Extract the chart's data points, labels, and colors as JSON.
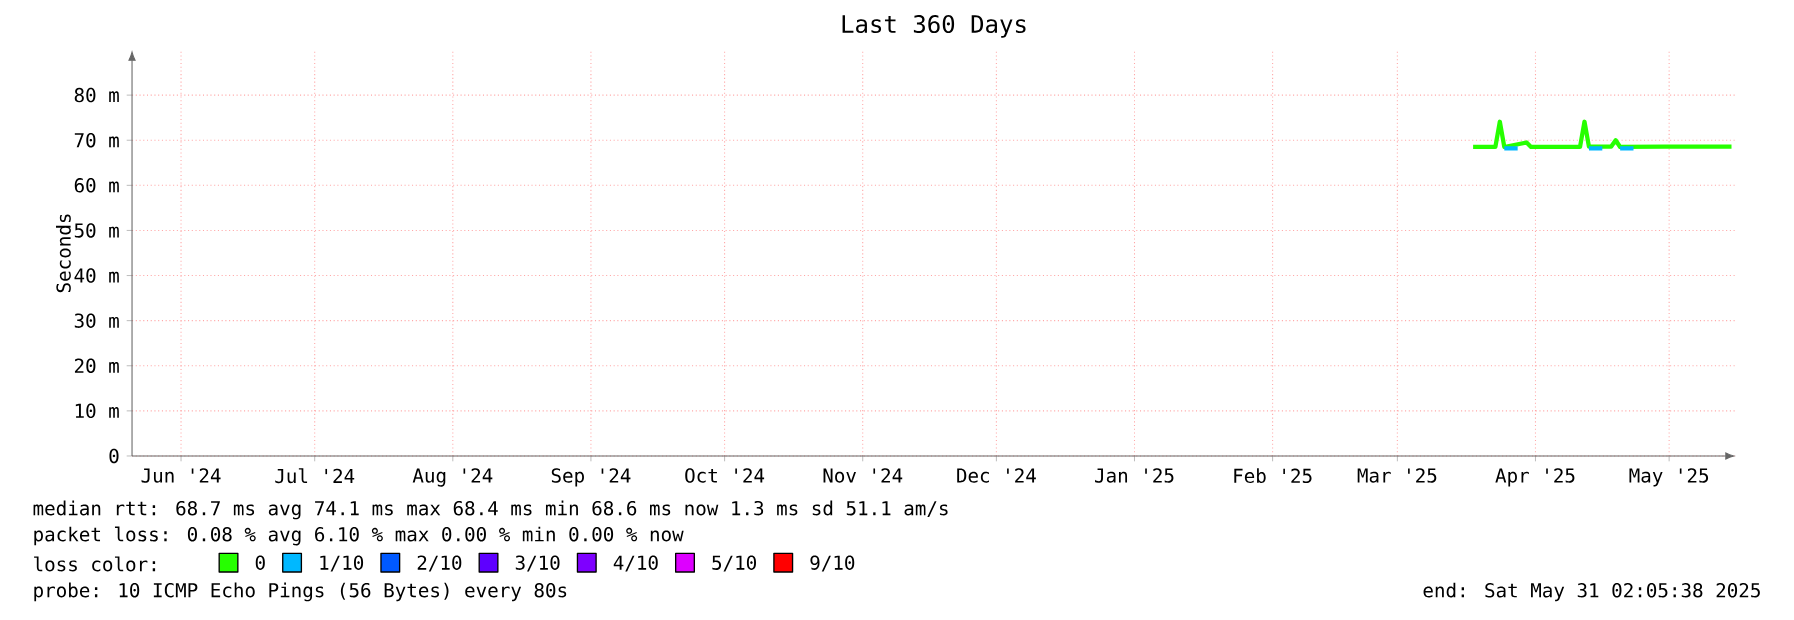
{
  "chart_data": {
    "type": "line",
    "title": "Last 360 Days",
    "ylabel": "Seconds",
    "legend_title": "loss color:",
    "xlim": [
      "2024-06-05",
      "2025-05-31"
    ],
    "xticks": [
      {
        "value": "2024-06-16",
        "label": "Jun '24"
      },
      {
        "value": "2024-07-16",
        "label": "Jul '24"
      },
      {
        "value": "2024-08-16",
        "label": "Aug '24"
      },
      {
        "value": "2024-09-16",
        "label": "Sep '24"
      },
      {
        "value": "2024-10-16",
        "label": "Oct '24"
      },
      {
        "value": "2024-11-16",
        "label": "Nov '24"
      },
      {
        "value": "2024-12-16",
        "label": "Dec '24"
      },
      {
        "value": "2025-01-16",
        "label": "Jan '25"
      },
      {
        "value": "2025-02-16",
        "label": "Feb '25"
      },
      {
        "value": "2025-03-16",
        "label": "Mar '25"
      },
      {
        "value": "2025-04-16",
        "label": "Apr '25"
      },
      {
        "value": "2025-05-16",
        "label": "May '25"
      }
    ],
    "ylim": [
      0,
      90
    ],
    "yticks": [
      {
        "value": 0,
        "label": "0"
      },
      {
        "value": 10,
        "label": "10 m"
      },
      {
        "value": 20,
        "label": "20 m"
      },
      {
        "value": 30,
        "label": "30 m"
      },
      {
        "value": 40,
        "label": "40 m"
      },
      {
        "value": 50,
        "label": "50 m"
      },
      {
        "value": 60,
        "label": "60 m"
      },
      {
        "value": 70,
        "label": "70 m"
      },
      {
        "value": 80,
        "label": "80 m"
      }
    ],
    "grid": true,
    "legend": "bottom",
    "marker": "none",
    "line_style": "solid",
    "series": [
      {
        "name": "0",
        "color": "#26ff00",
        "x": [
          "2025-04-02",
          "2025-04-07",
          "2025-04-08",
          "2025-04-09",
          "2025-04-14",
          "2025-04-15",
          "2025-04-26",
          "2025-04-27",
          "2025-04-28",
          "2025-05-03",
          "2025-05-04",
          "2025-05-05",
          "2025-05-15",
          "2025-05-30"
        ],
        "values": [
          68.5,
          68.5,
          74.1,
          68.5,
          69.5,
          68.5,
          68.5,
          74.1,
          68.6,
          68.6,
          70,
          68.5,
          68.6,
          68.6
        ]
      },
      {
        "name": "1/10",
        "color": "#00b8ff",
        "x": [
          "2025-04-09",
          "2025-04-12",
          "2025-04-20",
          "2025-04-28",
          "2025-05-01",
          "2025-05-04",
          "2025-05-05",
          "2025-05-08"
        ],
        "values": [
          68.2,
          68.2,
          null,
          68.2,
          68.2,
          null,
          68.2,
          68.2
        ]
      },
      {
        "name": "2/10",
        "color": "#0059ff"
      },
      {
        "name": "3/10",
        "color": "#5e00ff"
      },
      {
        "name": "4/10",
        "color": "#7e00ff"
      },
      {
        "name": "5/10",
        "color": "#dd00ff"
      },
      {
        "name": "9/10",
        "color": "#ff0000"
      }
    ],
    "annotations": [
      "median rtt:  68.7 ms avg  74.1 ms max  68.4 ms min  68.6 ms now  1.3 ms sd  51.1  am/s",
      "packet loss: 0.08 % avg  6.10 % max  0.00 % min  0.00 % now",
      "probe:  10 ICMP Echo Pings (56 Bytes) every 80s",
      "end: Sat May 31 02:05:38 2025"
    ]
  }
}
